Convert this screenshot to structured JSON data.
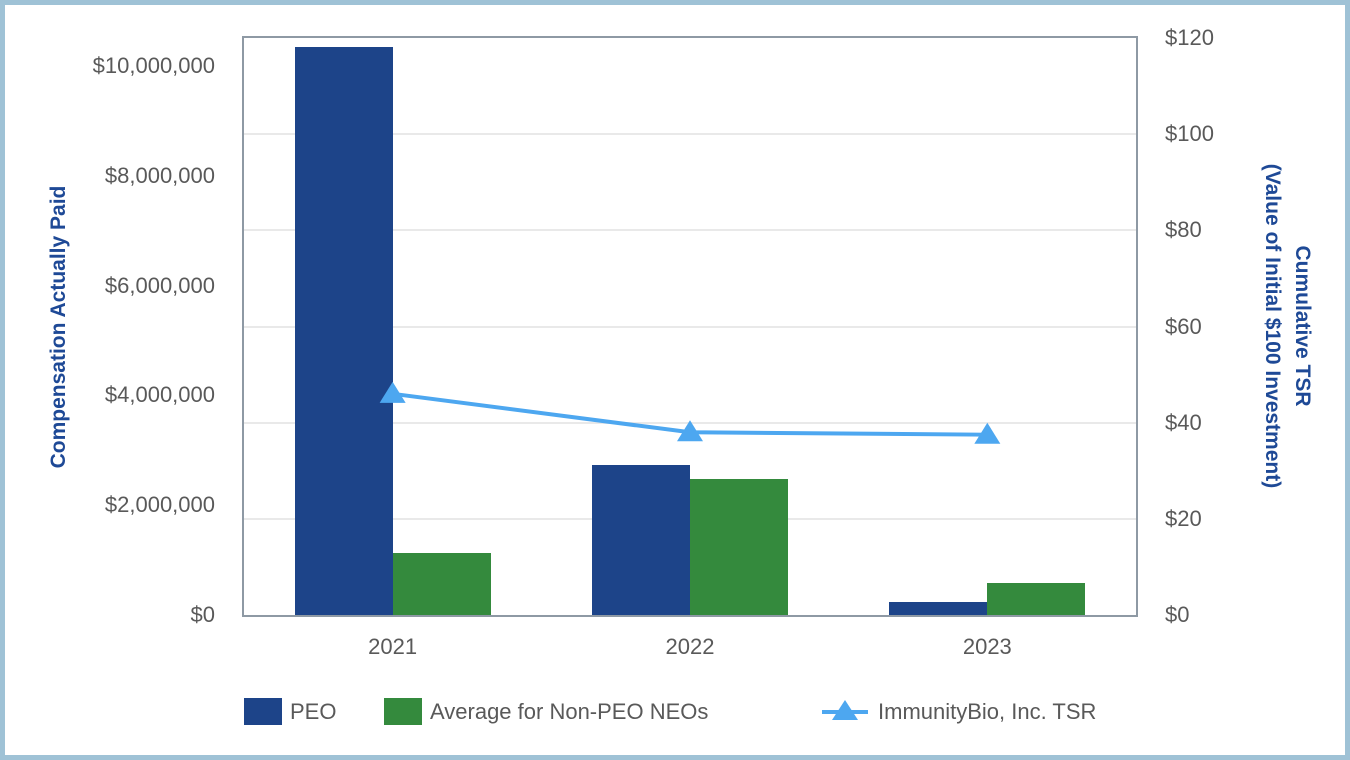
{
  "chart_data": {
    "type": "bar",
    "categories": [
      "2021",
      "2022",
      "2023"
    ],
    "series": [
      {
        "name": "PEO",
        "type": "bar",
        "axis": "left",
        "color": "#1d4489",
        "values": [
          10340000,
          2730000,
          230000
        ]
      },
      {
        "name": "Average for Non-PEO NEOs",
        "type": "bar",
        "axis": "left",
        "color": "#348a3d",
        "values": [
          1130000,
          2470000,
          590000
        ]
      },
      {
        "name": "ImmunityBio, Inc. TSR",
        "type": "line",
        "axis": "right",
        "marker": "triangle-up",
        "color": "#4da7f0",
        "values": [
          46,
          38,
          37.5
        ]
      }
    ],
    "left_axis": {
      "title": "Compensation Actually Paid",
      "min": 0,
      "max": 10510000,
      "ticks": [
        {
          "value": 0,
          "label": "$0"
        },
        {
          "value": 2000000,
          "label": "$2,000,000"
        },
        {
          "value": 4000000,
          "label": "$4,000,000"
        },
        {
          "value": 6000000,
          "label": "$6,000,000"
        },
        {
          "value": 8000000,
          "label": "$8,000,000"
        },
        {
          "value": 10000000,
          "label": "$10,000,000"
        }
      ]
    },
    "right_axis": {
      "title_lines": [
        "Cumulative TSR",
        "(Value of Initial $100 Investment)"
      ],
      "min": 0,
      "max": 120,
      "ticks": [
        {
          "value": 0,
          "label": "$0"
        },
        {
          "value": 20,
          "label": "$20"
        },
        {
          "value": 40,
          "label": "$40"
        },
        {
          "value": 60,
          "label": "$60"
        },
        {
          "value": 80,
          "label": "$80"
        },
        {
          "value": 100,
          "label": "$100"
        },
        {
          "value": 120,
          "label": "$120"
        }
      ]
    },
    "grid": {
      "show": true,
      "source": "right_axis"
    },
    "legend_position": "bottom"
  },
  "styles": {
    "background": "#ffffff",
    "frame_border": "#9fc2d6",
    "plot_border": "#8e99a4",
    "grid_color": "#e9e9e9",
    "tick_text": "#595959",
    "axis_title_text": "#1e4996"
  }
}
